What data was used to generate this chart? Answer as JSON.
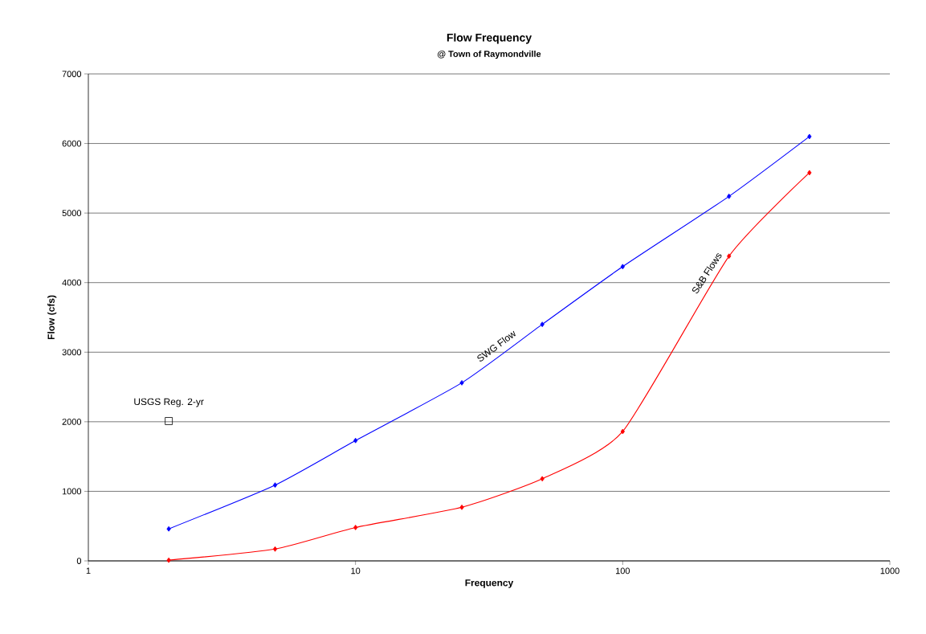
{
  "chart_data": {
    "type": "line",
    "title": "Flow Frequency",
    "subtitle": "@ Town of Raymondville",
    "xlabel": "Frequency",
    "ylabel": "Flow (cfs)",
    "log": "x",
    "xlim": [
      1,
      1000
    ],
    "xticks": [
      1,
      10,
      100,
      1000
    ],
    "ylim": [
      0,
      7000
    ],
    "yticks": [
      0,
      1000,
      2000,
      3000,
      4000,
      5000,
      6000,
      7000
    ],
    "grid": "y",
    "legend": false,
    "series": [
      {
        "name": "SWG Flow",
        "color": "#0000ff",
        "marker": "diamond",
        "x": [
          2,
          5,
          10,
          25,
          50,
          100,
          250,
          500
        ],
        "values": [
          460,
          1090,
          1730,
          2560,
          3400,
          4230,
          5240,
          6100
        ]
      },
      {
        "name": "S&B Flows",
        "color": "#ff0000",
        "marker": "diamond",
        "x": [
          2,
          5,
          10,
          25,
          50,
          100,
          250,
          500
        ],
        "values": [
          10,
          170,
          480,
          770,
          1180,
          1860,
          4380,
          5580
        ]
      },
      {
        "name": "USGS Reg. 2-yr",
        "type": "scatter",
        "color": "#000000",
        "marker": "square",
        "x": [
          2
        ],
        "values": [
          2010
        ]
      }
    ]
  }
}
